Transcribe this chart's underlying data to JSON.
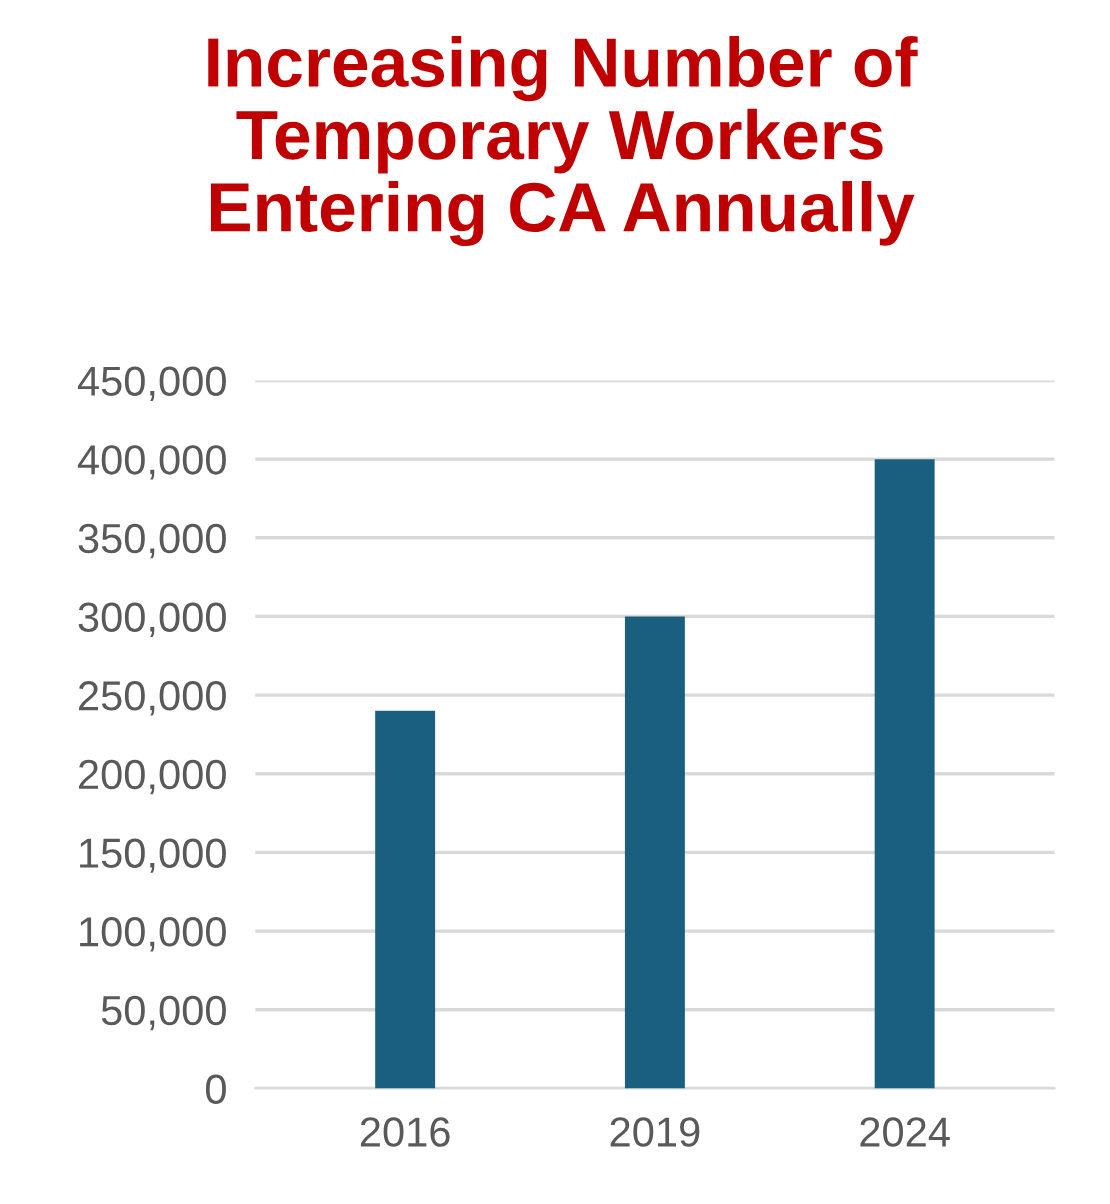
{
  "chart_data": {
    "type": "bar",
    "title": "Increasing Number of\nTemporary Workers\nEntering CA Annually",
    "categories": [
      "2016",
      "2019",
      "2024"
    ],
    "values": [
      240000,
      300000,
      400000
    ],
    "color": "#1a5f80",
    "ylim": [
      0,
      450000
    ],
    "yticks": [
      {
        "value": 0,
        "label": "0"
      },
      {
        "value": 50000,
        "label": "50,000"
      },
      {
        "value": 100000,
        "label": "100,000"
      },
      {
        "value": 150000,
        "label": "150,000"
      },
      {
        "value": 200000,
        "label": "200,000"
      },
      {
        "value": 250000,
        "label": "250,000"
      },
      {
        "value": 300000,
        "label": "300,000"
      },
      {
        "value": 350000,
        "label": "350,000"
      },
      {
        "value": 400000,
        "label": "400,000"
      },
      {
        "value": 450000,
        "label": "450,000"
      }
    ],
    "grid": "y",
    "legend": false
  }
}
